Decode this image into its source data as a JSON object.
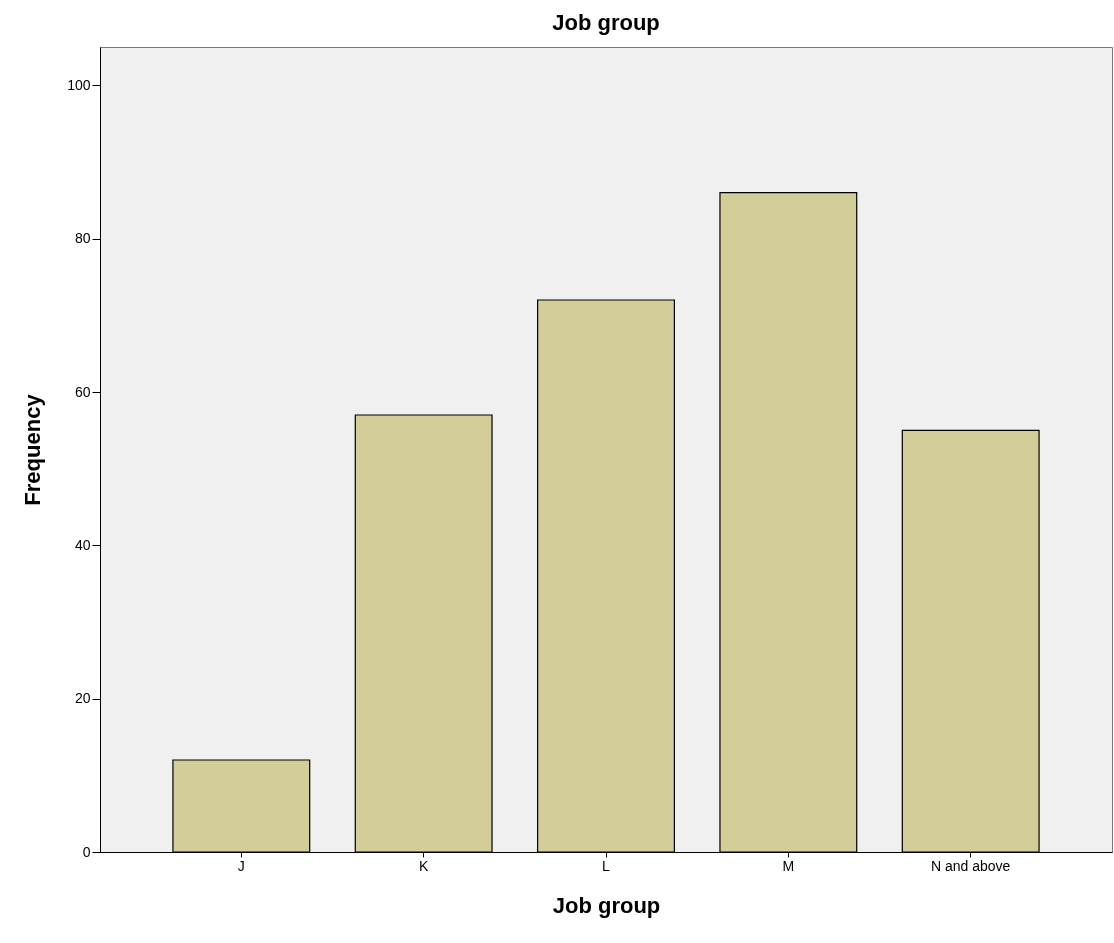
{
  "chart_data": {
    "type": "bar",
    "title": "Job group",
    "xlabel": "Job group",
    "ylabel": "Frequency",
    "categories": [
      "J",
      "K",
      "L",
      "M",
      "N and above"
    ],
    "values": [
      12,
      57,
      72,
      86,
      55
    ],
    "color": "#d3ce97",
    "ylim": [
      0,
      105
    ],
    "yticks": [
      0,
      20,
      40,
      60,
      80,
      100
    ],
    "grid": false
  }
}
